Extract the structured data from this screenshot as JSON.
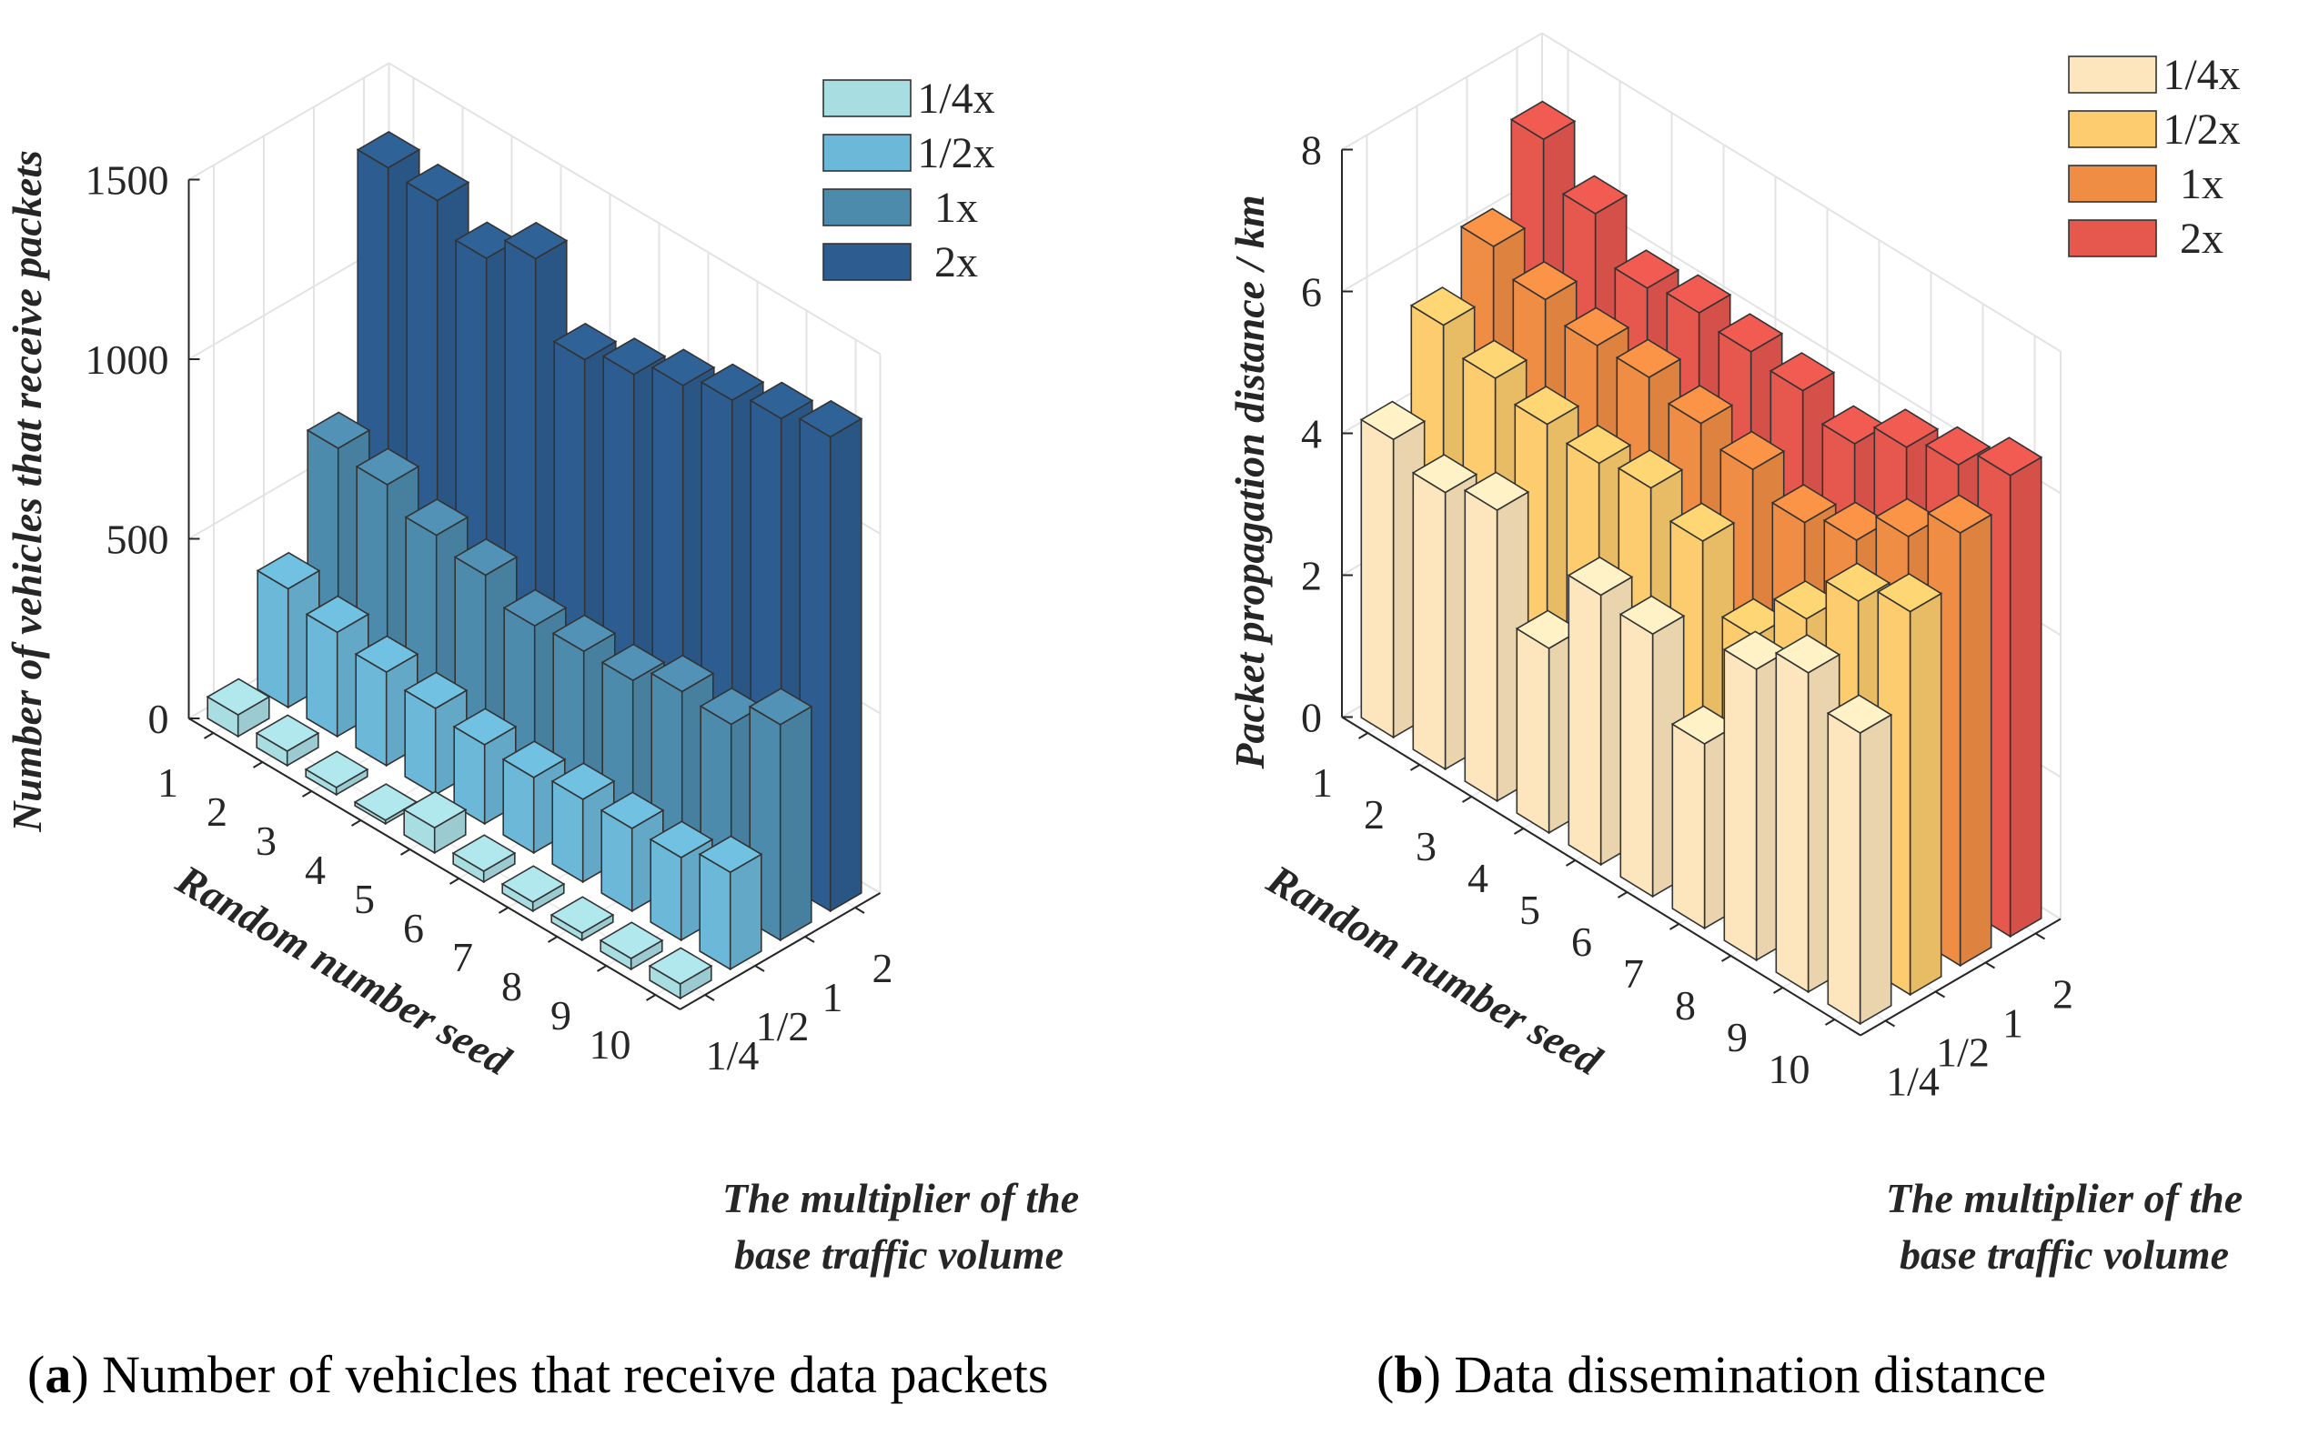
{
  "chart_data": [
    {
      "type": "bar",
      "subtype": "3d-bar",
      "panel_letter": "a",
      "caption": "Number of vehicles that receive data packets",
      "zlabel": "Number of vehicles that receive packets",
      "seed_label": "Random number seed",
      "mult_label_lines": [
        "The multiplier of the",
        "base traffic volume"
      ],
      "z_ticks": [
        "0",
        "500",
        "1000",
        "1500"
      ],
      "z_tick_values": [
        0,
        500,
        1000,
        1500
      ],
      "zlim": [
        0,
        1500
      ],
      "seed_ticks": [
        "1",
        "2",
        "3",
        "4",
        "5",
        "6",
        "7",
        "8",
        "9",
        "10"
      ],
      "mult_ticks": [
        "1/4",
        "1/2",
        "1",
        "2"
      ],
      "legend_placement": "top-right",
      "grid": true,
      "series": [
        {
          "name": "1/4x",
          "color": "#a8dde2",
          "values": [
            60,
            40,
            20,
            10,
            70,
            30,
            25,
            20,
            30,
            40
          ]
        },
        {
          "name": "1/2x",
          "color": "#6cb8d8",
          "values": [
            330,
            290,
            260,
            240,
            220,
            210,
            230,
            230,
            230,
            270
          ]
        },
        {
          "name": "1x",
          "color": "#4d8bad",
          "values": [
            640,
            620,
            560,
            530,
            470,
            480,
            480,
            530,
            520,
            600
          ]
        },
        {
          "name": "2x",
          "color": "#2d5d90",
          "values": [
            1340,
            1330,
            1250,
            1330,
            1130,
            1170,
            1220,
            1260,
            1290,
            1320
          ]
        }
      ]
    },
    {
      "type": "bar",
      "subtype": "3d-bar",
      "panel_letter": "b",
      "caption": "Data dissemination distance",
      "zlabel": "Packet propagation distance / km",
      "seed_label": "Random number seed",
      "mult_label_lines": [
        "The multiplier of the",
        "base traffic volume"
      ],
      "z_ticks": [
        "0",
        "2",
        "4",
        "6",
        "8"
      ],
      "z_tick_values": [
        0,
        2,
        4,
        6,
        8
      ],
      "zlim": [
        0,
        8
      ],
      "seed_ticks": [
        "1",
        "2",
        "3",
        "4",
        "5",
        "6",
        "7",
        "8",
        "9",
        "10"
      ],
      "mult_ticks": [
        "1/4",
        "1/2",
        "1",
        "2"
      ],
      "legend_placement": "top-right",
      "grid": true,
      "series": [
        {
          "name": "1/4x",
          "color": "#fde6bd",
          "values": [
            4.2,
            3.9,
            4.1,
            2.6,
            3.8,
            3.7,
            2.6,
            4.1,
            4.5,
            4.1
          ]
        },
        {
          "name": "1/2x",
          "color": "#fccc6e",
          "values": [
            5.4,
            5.1,
            4.9,
            4.8,
            4.9,
            4.6,
            3.7,
            4.4,
            5.1,
            5.4
          ]
        },
        {
          "name": "1x",
          "color": "#f08d45",
          "values": [
            6.1,
            5.8,
            5.6,
            5.6,
            5.4,
            5.2,
            4.9,
            5.1,
            5.6,
            6.1
          ]
        },
        {
          "name": "2x",
          "color": "#e6574e",
          "values": [
            7.2,
            6.6,
            6.0,
            6.1,
            6.0,
            5.9,
            5.6,
            6.0,
            6.2,
            6.5
          ]
        }
      ]
    }
  ]
}
